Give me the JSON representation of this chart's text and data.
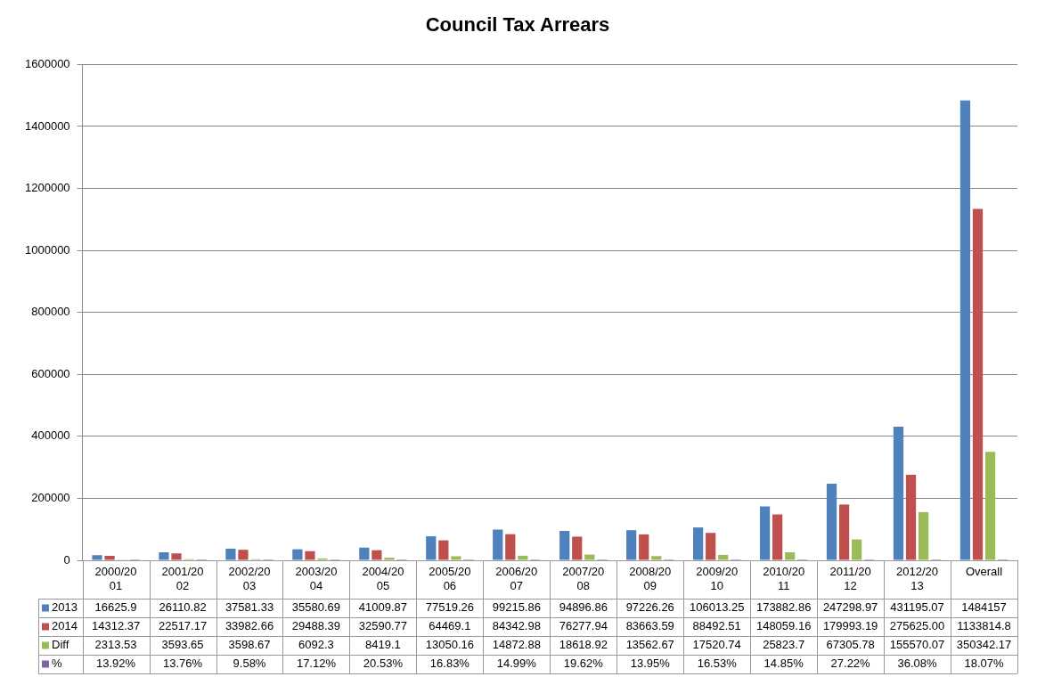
{
  "chart_data": {
    "type": "bar",
    "title": "Council Tax Arrears",
    "categories": [
      "2000/2001",
      "2001/2002",
      "2002/2003",
      "2003/2004",
      "2004/2005",
      "2005/2006",
      "2006/2007",
      "2007/2008",
      "2008/2009",
      "2009/2010",
      "2010/2011",
      "2011/2012",
      "2012/2013",
      "Overall"
    ],
    "series": [
      {
        "name": "2013",
        "color": "#4f81bd",
        "values": [
          16625.9,
          26110.82,
          37581.33,
          35580.69,
          41009.87,
          77519.26,
          99215.86,
          94896.86,
          97226.26,
          106013.25,
          173882.86,
          247298.97,
          431195.07,
          1484157
        ],
        "value_labels": [
          "16625.9",
          "26110.82",
          "37581.33",
          "35580.69",
          "41009.87",
          "77519.26",
          "99215.86",
          "94896.86",
          "97226.26",
          "106013.25",
          "173882.86",
          "247298.97",
          "431195.07",
          "1484157"
        ]
      },
      {
        "name": "2014",
        "color": "#c0504d",
        "values": [
          14312.37,
          22517.17,
          33982.66,
          29488.39,
          32590.77,
          64469.1,
          84342.98,
          76277.94,
          83663.59,
          88492.51,
          148059.16,
          179993.19,
          275625,
          1133814.8
        ],
        "value_labels": [
          "14312.37",
          "22517.17",
          "33982.66",
          "29488.39",
          "32590.77",
          "64469.1",
          "84342.98",
          "76277.94",
          "83663.59",
          "88492.51",
          "148059.16",
          "179993.19",
          "275625.00",
          "1133814.8"
        ]
      },
      {
        "name": "Diff",
        "color": "#9bbb59",
        "values": [
          2313.53,
          3593.65,
          3598.67,
          6092.3,
          8419.1,
          13050.16,
          14872.88,
          18618.92,
          13562.67,
          17520.74,
          25823.7,
          67305.78,
          155570.07,
          350342.17
        ],
        "value_labels": [
          "2313.53",
          "3593.65",
          "3598.67",
          "6092.3",
          "8419.1",
          "13050.16",
          "14872.88",
          "18618.92",
          "13562.67",
          "17520.74",
          "25823.7",
          "67305.78",
          "155570.07",
          "350342.17"
        ]
      },
      {
        "name": "%",
        "color": "#8064a2",
        "values": [
          13.92,
          13.76,
          9.58,
          17.12,
          20.53,
          16.83,
          14.99,
          19.62,
          13.95,
          16.53,
          14.85,
          27.22,
          36.08,
          18.07
        ],
        "value_labels": [
          "13.92%",
          "13.76%",
          "9.58%",
          "17.12%",
          "20.53%",
          "16.83%",
          "14.99%",
          "19.62%",
          "13.95%",
          "16.53%",
          "14.85%",
          "27.22%",
          "36.08%",
          "18.07%"
        ]
      }
    ],
    "ylim": [
      0,
      1600000
    ],
    "yticks": [
      0,
      200000,
      400000,
      600000,
      800000,
      1000000,
      1200000,
      1400000,
      1600000
    ],
    "grid": "y",
    "legend": "bottom left"
  }
}
